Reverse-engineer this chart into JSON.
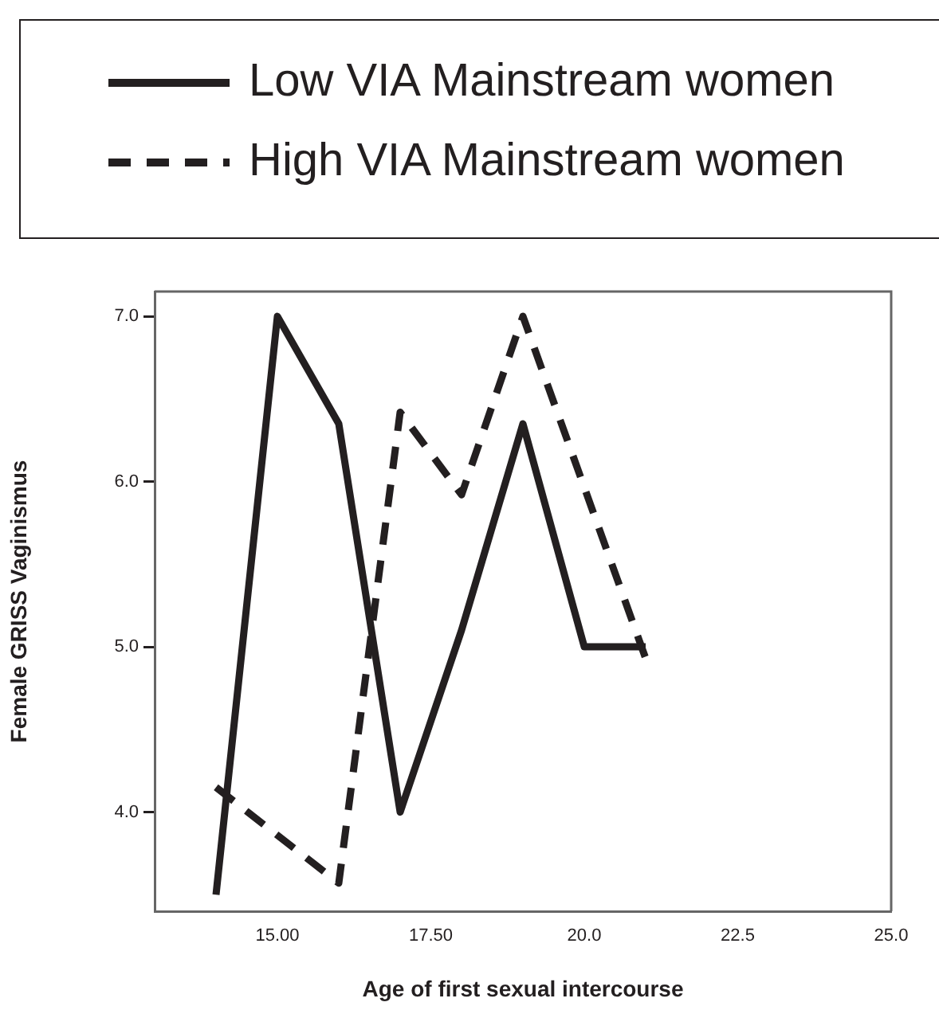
{
  "chart_data": {
    "type": "line",
    "xlabel": "Age of first sexual intercourse",
    "ylabel": "Female GRISS Vaginismus",
    "xlim": [
      13,
      25
    ],
    "xticks": [
      {
        "value": 15,
        "label": "15.00"
      },
      {
        "value": 17.5,
        "label": "17.50"
      },
      {
        "value": 20,
        "label": "20.0"
      },
      {
        "value": 22.5,
        "label": "22.5"
      },
      {
        "value": 25,
        "label": "25.0"
      }
    ],
    "ylim": [
      3.4,
      7.15
    ],
    "yticks": [
      {
        "value": 4,
        "label": "4.0"
      },
      {
        "value": 5,
        "label": "5.0"
      },
      {
        "value": 6,
        "label": "6.0"
      },
      {
        "value": 7,
        "label": "7.0"
      }
    ],
    "grid": false,
    "legend": "top",
    "marker": "none",
    "series": [
      {
        "name": "Low VIA Mainstream women",
        "color": "#231f20",
        "line_style": "solid",
        "x": [
          14,
          15,
          16,
          17,
          18,
          19,
          20,
          21
        ],
        "values": [
          3.5,
          7.0,
          6.35,
          4.0,
          5.1,
          6.35,
          5.0,
          5.0
        ]
      },
      {
        "name": "High VIA Mainstream women",
        "color": "#231f20",
        "line_style": "dashed",
        "x": [
          14,
          16,
          17,
          18,
          19,
          21
        ],
        "values": [
          4.15,
          3.57,
          6.42,
          5.92,
          7.0,
          4.93
        ]
      }
    ]
  }
}
